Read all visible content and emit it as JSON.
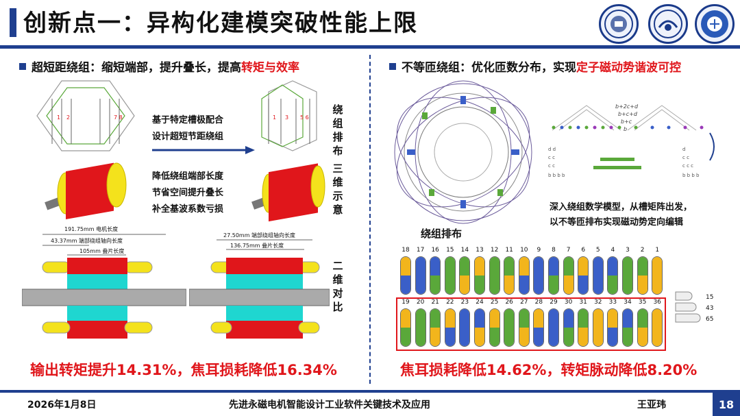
{
  "header": {
    "title": "创新点一：异构化建模突破性能上限"
  },
  "left": {
    "heading_prefix": "超短距绕组：缩短端部，提升叠长，提高",
    "heading_highlight": "转矩与效率",
    "note1_line1": "基于特定槽极配合",
    "note1_line2": "设计超短节距绕组",
    "note2_line1": "降低绕组端部长度",
    "note2_line2": "节省空间提升叠长",
    "note2_line3": "补全基波系数亏损",
    "label_winding": "绕组排布",
    "label_3d": "三维示意",
    "label_2d": "二维对比",
    "dims_left": [
      "191.75mm 电机长度",
      "43.37mm 端部绕组轴向长度",
      "105mm 叠片长度"
    ],
    "dims_right": [
      "27.50mm 端部绕组轴向长度",
      "136.75mm 叠片长度"
    ],
    "result": "输出转矩提升14.31%，焦耳损耗降低16.34%"
  },
  "right": {
    "heading_prefix": "不等匝绕组：优化匝数分布，实现",
    "heading_highlight": "定子磁动势谐波可控",
    "caption_winding": "绕组排布",
    "note_line1": "深入绕组数学模型，从槽矩阵出发，",
    "note_line2": "以不等匝排布实现磁动势定向编辑",
    "formulas": [
      "b+2c+d",
      "b+c+d",
      "b+c",
      "b"
    ],
    "slots_top": [
      "18",
      "17",
      "16",
      "15",
      "14",
      "13",
      "12",
      "11",
      "10",
      "9",
      "8",
      "7",
      "6",
      "5",
      "4",
      "3",
      "2",
      "1"
    ],
    "slots_bottom": [
      "19",
      "20",
      "21",
      "22",
      "23",
      "24",
      "25",
      "26",
      "27",
      "28",
      "29",
      "30",
      "31",
      "32",
      "33",
      "34",
      "35",
      "36"
    ],
    "legend": [
      "15",
      "43",
      "65"
    ],
    "result": "焦耳损耗降低14.62%，转矩脉动降低8.20%"
  },
  "footer": {
    "date": "2026年1月8日",
    "subject": "先进永磁电机智能设计工业软件关键技术及应用",
    "author": "王亚玮",
    "page": "18"
  },
  "colors": {
    "accent": "#1f3f8f",
    "highlight": "#e0161b",
    "coil_yellow": "#f2b51c",
    "coil_blue": "#3a5fc8",
    "coil_green": "#5aa83a"
  },
  "icons": [
    "university-logo-1",
    "university-logo-2",
    "university-logo-3"
  ]
}
